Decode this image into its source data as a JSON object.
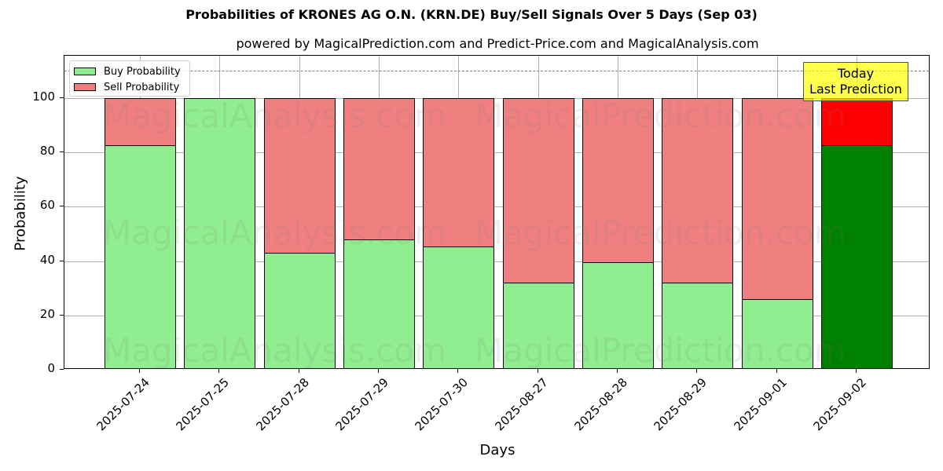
{
  "title": "Probabilities of KRONES AG O.N. (KRN.DE) Buy/Sell Signals Over 5 Days (Sep 03)",
  "subtitle": "powered by MagicalPrediction.com and Predict-Price.com and MagicalAnalysis.com",
  "legend": {
    "buy_label": "Buy Probability",
    "sell_label": "Sell Probability"
  },
  "annotation": {
    "line1": "Today",
    "line2": "Last Prediction"
  },
  "watermarks": [
    "MagicalAnalysis.com",
    "MagicalPrediction.com"
  ],
  "colors": {
    "buy": "#90ee90",
    "sell": "#f08080",
    "today_buy": "#008000",
    "today_sell": "#ff0000",
    "annotation_bg": "#ffff00"
  },
  "chart_data": {
    "type": "bar",
    "stacked": true,
    "title": "Probabilities of KRONES AG O.N. (KRN.DE) Buy/Sell Signals Over 5 Days (Sep 03)",
    "subtitle": "powered by MagicalPrediction.com and Predict-Price.com and MagicalAnalysis.com",
    "xlabel": "Days",
    "ylabel": "Probability",
    "ylim": [
      0,
      115
    ],
    "yticks": [
      0,
      20,
      40,
      60,
      80,
      100
    ],
    "grid": true,
    "legend_position": "upper left",
    "reference_line": {
      "y": 110,
      "style": "dashed",
      "color": "#808080"
    },
    "categories": [
      "2025-07-24",
      "2025-07-25",
      "2025-07-28",
      "2025-07-29",
      "2025-07-30",
      "2025-08-27",
      "2025-08-28",
      "2025-08-29",
      "2025-09-01",
      "2025-09-02"
    ],
    "series": [
      {
        "name": "Buy Probability",
        "values": [
          82.6,
          100.0,
          43.2,
          47.9,
          45.3,
          32.0,
          39.7,
          32.0,
          25.9,
          82.6
        ]
      },
      {
        "name": "Sell Probability",
        "values": [
          17.4,
          0.0,
          56.8,
          52.1,
          54.7,
          68.0,
          60.3,
          68.0,
          74.1,
          17.4
        ]
      }
    ],
    "highlight": {
      "category": "2025-09-02",
      "label": "Today\nLast Prediction"
    }
  }
}
